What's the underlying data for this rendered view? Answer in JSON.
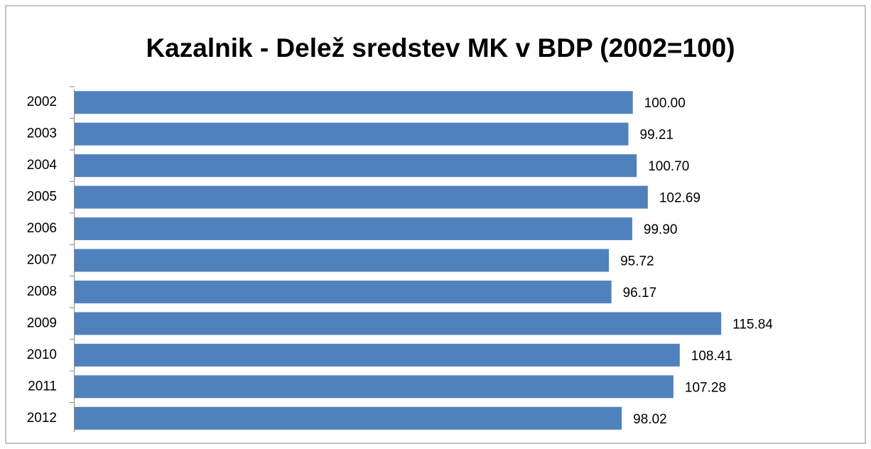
{
  "chart_data": {
    "type": "bar",
    "orientation": "horizontal",
    "title": "Kazalnik - Delež sredstev MK v BDP (2002=100)",
    "categories": [
      "2002",
      "2003",
      "2004",
      "2005",
      "2006",
      "2007",
      "2008",
      "2009",
      "2010",
      "2011",
      "2012"
    ],
    "values": [
      100,
      99.21,
      100.7,
      102.69,
      99.9,
      95.72,
      96.17,
      115.84,
      108.41,
      107.28,
      98.02
    ],
    "value_labels": [
      "100.00",
      "99.21",
      "100.70",
      "102.69",
      "99.90",
      "95.72",
      "96.17",
      "115.84",
      "108.41",
      "107.28",
      "98.02"
    ],
    "color": "#4f81bd",
    "xlim": [
      0,
      140
    ]
  }
}
